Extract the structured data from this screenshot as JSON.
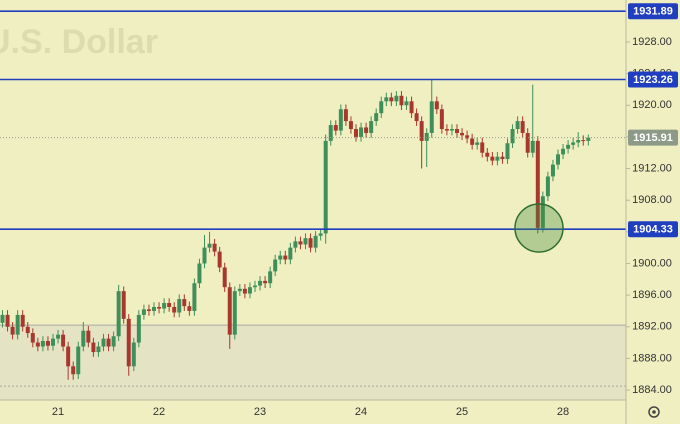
{
  "chart_data": {
    "type": "candlestick",
    "watermark": "U.S. Dollar",
    "categories": [
      null,
      null,
      null,
      null,
      null,
      null,
      null,
      null,
      null,
      null,
      null,
      "21",
      null,
      null,
      null,
      null,
      null,
      null,
      null,
      null,
      null,
      null,
      null,
      null,
      null,
      null,
      null,
      null,
      null,
      null,
      null,
      "22",
      null,
      null,
      null,
      null,
      null,
      null,
      null,
      null,
      null,
      null,
      null,
      null,
      null,
      null,
      null,
      null,
      null,
      null,
      null,
      "23",
      null,
      null,
      null,
      null,
      null,
      null,
      null,
      null,
      null,
      null,
      null,
      null,
      null,
      null,
      null,
      null,
      null,
      null,
      null,
      "24",
      null,
      null,
      null,
      null,
      null,
      null,
      null,
      null,
      null,
      null,
      null,
      null,
      null,
      null,
      null,
      null,
      null,
      null,
      null,
      "25",
      null,
      null,
      null,
      null,
      null,
      null,
      null,
      null,
      null,
      null,
      null,
      null,
      null,
      null,
      null,
      null,
      null,
      null,
      null,
      "28",
      null,
      null,
      null,
      null,
      null
    ],
    "open": [
      1892.5,
      1893.5,
      1892.0,
      1891.0,
      1893.5,
      1892.0,
      1891.2,
      1890.0,
      1889.5,
      1890.2,
      1889.6,
      1890.5,
      1891.0,
      1889.5,
      1887.0,
      1886.0,
      1889.5,
      1891.5,
      1890.0,
      1888.8,
      1889.5,
      1890.5,
      1889.5,
      1890.8,
      1896.5,
      1893.0,
      1887.0,
      1890.0,
      1893.5,
      1894.2,
      1894.0,
      1894.5,
      1894.3,
      1895.0,
      1894.5,
      1893.8,
      1895.5,
      1894.6,
      1894.0,
      1897.5,
      1900.0,
      1902.0,
      1902.5,
      1901.5,
      1899.5,
      1897.0,
      1891.0,
      1896.5,
      1896.8,
      1896.2,
      1897.0,
      1897.2,
      1897.8,
      1897.5,
      1899.0,
      1900.5,
      1901.0,
      1900.5,
      1902.0,
      1902.8,
      1902.4,
      1903.2,
      1902.0,
      1903.5,
      1903.8,
      1915.5,
      1917.5,
      1916.8,
      1919.5,
      1918.0,
      1917.0,
      1916.0,
      1917.2,
      1916.5,
      1918.0,
      1919.0,
      1920.5,
      1921.0,
      1920.5,
      1921.2,
      1920.0,
      1920.5,
      1919.0,
      1918.0,
      1915.5,
      1916.5,
      1920.5,
      1919.5,
      1917.0,
      1916.8,
      1917.0,
      1916.5,
      1916.2,
      1915.8,
      1915.0,
      1915.3,
      1914.0,
      1913.5,
      1913.0,
      1913.5,
      1913.2,
      1915.2,
      1917.0,
      1918.0,
      1916.5,
      1914.0,
      1915.5,
      1904.5,
      1908.5,
      1911.0,
      1912.5,
      1913.8,
      1914.5,
      1915.0,
      1915.3,
      1915.6,
      1915.5
    ],
    "high": [
      1894.1,
      1894.1,
      1892.6,
      1894.1,
      1894.1,
      1892.6,
      1891.8,
      1890.6,
      1890.8,
      1890.8,
      1891.1,
      1891.6,
      1891.6,
      1890.1,
      1887.6,
      1890.1,
      1892.6,
      1892.1,
      1890.6,
      1890.1,
      1891.1,
      1891.1,
      1891.4,
      1897.3,
      1897.1,
      1893.6,
      1890.6,
      1894.1,
      1894.8,
      1894.8,
      1895.1,
      1895.1,
      1895.6,
      1895.6,
      1895.1,
      1896.1,
      1896.1,
      1895.2,
      1898.1,
      1900.6,
      1903.6,
      1904.0,
      1903.1,
      1902.1,
      1900.1,
      1897.6,
      1897.1,
      1897.4,
      1897.4,
      1897.6,
      1897.8,
      1898.4,
      1898.4,
      1899.6,
      1901.1,
      1901.6,
      1901.6,
      1902.6,
      1903.4,
      1903.4,
      1903.8,
      1903.8,
      1904.1,
      1904.4,
      1916.3,
      1918.1,
      1918.1,
      1920.1,
      1920.1,
      1918.6,
      1917.6,
      1917.8,
      1917.8,
      1918.6,
      1919.6,
      1921.1,
      1921.6,
      1921.6,
      1921.8,
      1921.8,
      1921.1,
      1921.1,
      1919.6,
      1918.6,
      1917.1,
      1923.2,
      1921.1,
      1920.1,
      1917.6,
      1917.6,
      1917.6,
      1917.1,
      1916.8,
      1916.4,
      1915.9,
      1915.9,
      1914.6,
      1914.1,
      1914.1,
      1914.1,
      1915.8,
      1917.6,
      1918.6,
      1918.6,
      1917.1,
      1922.6,
      1916.1,
      1909.1,
      1911.6,
      1913.1,
      1914.4,
      1915.1,
      1915.6,
      1915.9,
      1916.6,
      1916.2,
      1916.3
    ],
    "low": [
      1891.9,
      1891.4,
      1890.4,
      1890.4,
      1891.4,
      1890.6,
      1889.4,
      1888.9,
      1888.9,
      1889.0,
      1889.0,
      1889.9,
      1888.9,
      1885.3,
      1885.3,
      1885.4,
      1888.9,
      1889.4,
      1888.2,
      1888.2,
      1888.9,
      1888.9,
      1888.9,
      1890.2,
      1892.4,
      1885.8,
      1886.4,
      1889.4,
      1892.9,
      1893.4,
      1893.4,
      1893.7,
      1893.7,
      1893.9,
      1893.2,
      1893.2,
      1894.0,
      1893.4,
      1893.4,
      1896.9,
      1899.4,
      1901.4,
      1900.9,
      1898.9,
      1896.4,
      1889.2,
      1890.4,
      1895.9,
      1895.6,
      1895.6,
      1896.4,
      1896.6,
      1896.9,
      1896.9,
      1898.4,
      1899.9,
      1899.9,
      1899.9,
      1901.4,
      1901.8,
      1901.8,
      1901.4,
      1901.4,
      1902.9,
      1902.5,
      1914.9,
      1916.2,
      1916.2,
      1917.4,
      1916.4,
      1915.4,
      1915.4,
      1915.9,
      1915.9,
      1917.4,
      1918.4,
      1919.9,
      1919.9,
      1919.9,
      1919.4,
      1919.4,
      1918.4,
      1917.4,
      1912.0,
      1912.2,
      1915.9,
      1918.9,
      1916.4,
      1916.2,
      1916.2,
      1915.9,
      1915.6,
      1915.2,
      1914.4,
      1914.4,
      1913.4,
      1912.9,
      1912.4,
      1912.4,
      1912.6,
      1912.6,
      1914.6,
      1916.4,
      1915.9,
      1913.4,
      1913.4,
      1903.8,
      1903.9,
      1907.9,
      1910.4,
      1911.9,
      1913.2,
      1913.9,
      1914.4,
      1914.7,
      1914.9,
      1914.9
    ],
    "close": [
      1893.5,
      1892.0,
      1891.0,
      1893.5,
      1892.0,
      1891.2,
      1890.0,
      1889.5,
      1890.2,
      1889.6,
      1890.5,
      1891.0,
      1889.5,
      1887.0,
      1886.0,
      1889.5,
      1891.5,
      1890.0,
      1888.8,
      1889.5,
      1890.5,
      1889.5,
      1890.8,
      1896.5,
      1893.0,
      1887.0,
      1890.0,
      1893.5,
      1894.2,
      1894.0,
      1894.5,
      1894.3,
      1895.0,
      1894.5,
      1893.8,
      1895.5,
      1894.6,
      1894.0,
      1897.5,
      1900.0,
      1902.0,
      1902.5,
      1901.5,
      1899.5,
      1897.0,
      1891.0,
      1896.5,
      1896.8,
      1896.2,
      1897.0,
      1897.2,
      1897.8,
      1897.5,
      1899.0,
      1900.5,
      1901.0,
      1900.5,
      1902.0,
      1902.8,
      1902.4,
      1903.2,
      1902.0,
      1903.5,
      1903.8,
      1915.5,
      1917.5,
      1916.8,
      1919.5,
      1918.0,
      1917.0,
      1916.0,
      1917.2,
      1916.5,
      1918.0,
      1919.0,
      1920.5,
      1921.0,
      1920.5,
      1921.2,
      1920.0,
      1920.5,
      1919.0,
      1918.0,
      1915.5,
      1916.5,
      1920.5,
      1919.5,
      1917.0,
      1916.8,
      1917.0,
      1916.5,
      1916.2,
      1915.8,
      1915.0,
      1915.3,
      1914.0,
      1913.5,
      1913.0,
      1913.5,
      1913.2,
      1915.2,
      1917.0,
      1918.0,
      1916.5,
      1914.0,
      1915.5,
      1904.5,
      1908.5,
      1911.0,
      1912.5,
      1913.8,
      1914.5,
      1915.0,
      1915.3,
      1915.6,
      1915.5,
      1915.91
    ],
    "up_color": "#3f8f5a",
    "down_color": "#a8382e",
    "levels": [
      1931.89,
      1923.26,
      1904.33
    ],
    "level_color": "#1f3fbf",
    "last_price": 1915.91,
    "last_price_color": "#8e9a88",
    "zone_lines": [
      1892.2,
      1884.5
    ],
    "ylim": [
      1882.74,
      1933.31
    ],
    "yticks": [
      {
        "value": 1884,
        "label": "1884.00"
      },
      {
        "value": 1888,
        "label": "1888.00"
      },
      {
        "value": 1892,
        "label": "1892.00"
      },
      {
        "value": 1896,
        "label": "1896.00"
      },
      {
        "value": 1900,
        "label": "1900.00"
      },
      {
        "value": 1904,
        "label": "1904.00"
      },
      {
        "value": 1908,
        "label": "1908.00"
      },
      {
        "value": 1912,
        "label": "1912.00"
      },
      {
        "value": 1916,
        "label": "1916.00"
      },
      {
        "value": 1920,
        "label": "1920.00"
      },
      {
        "value": 1924,
        "label": "1924.00"
      },
      {
        "value": 1928,
        "label": "1928.00"
      }
    ],
    "grid": false
  }
}
